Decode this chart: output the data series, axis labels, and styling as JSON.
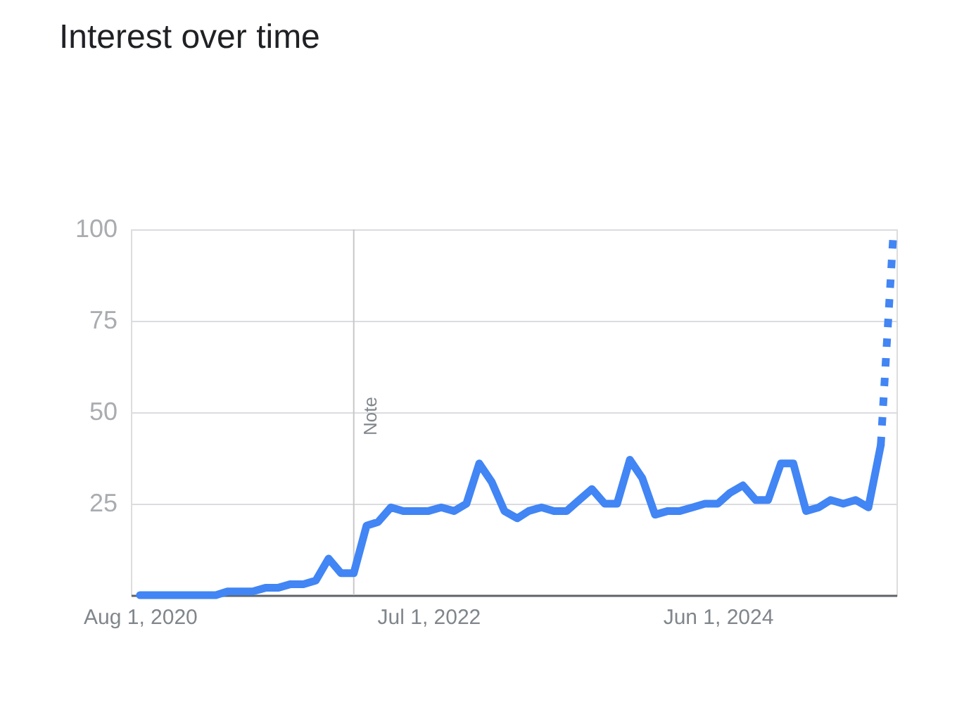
{
  "chart_data": {
    "type": "line",
    "title": "Interest over time",
    "x": [
      "2020-08",
      "2020-09",
      "2020-10",
      "2020-11",
      "2020-12",
      "2021-01",
      "2021-02",
      "2021-03",
      "2021-04",
      "2021-05",
      "2021-06",
      "2021-07",
      "2021-08",
      "2021-09",
      "2021-10",
      "2021-11",
      "2021-12",
      "2022-01",
      "2022-02",
      "2022-03",
      "2022-04",
      "2022-05",
      "2022-06",
      "2022-07",
      "2022-08",
      "2022-09",
      "2022-10",
      "2022-11",
      "2022-12",
      "2023-01",
      "2023-02",
      "2023-03",
      "2023-04",
      "2023-05",
      "2023-06",
      "2023-07",
      "2023-08",
      "2023-09",
      "2023-10",
      "2023-11",
      "2023-12",
      "2024-01",
      "2024-02",
      "2024-03",
      "2024-04",
      "2024-05",
      "2024-06",
      "2024-07",
      "2024-08",
      "2024-09",
      "2024-10",
      "2024-11",
      "2024-12",
      "2025-01",
      "2025-02",
      "2025-03",
      "2025-04",
      "2025-05",
      "2025-06",
      "2025-07",
      "2025-08"
    ],
    "series": [
      {
        "color": "#4285f4",
        "values": [
          0,
          0,
          0,
          0,
          0,
          0,
          0,
          1,
          1,
          1,
          2,
          2,
          3,
          3,
          4,
          10,
          6,
          6,
          19,
          20,
          24,
          23,
          23,
          23,
          24,
          23,
          25,
          36,
          31,
          23,
          21,
          23,
          24,
          23,
          23,
          26,
          29,
          25,
          25,
          37,
          32,
          22,
          23,
          23,
          24,
          25,
          25,
          28,
          30,
          26,
          26,
          36,
          36,
          23,
          24,
          26,
          25,
          26,
          24,
          41,
          null
        ]
      },
      {
        "color": "#4285f4",
        "line_style": "dotted",
        "values": [
          null,
          null,
          null,
          null,
          null,
          null,
          null,
          null,
          null,
          null,
          null,
          null,
          null,
          null,
          null,
          null,
          null,
          null,
          null,
          null,
          null,
          null,
          null,
          null,
          null,
          null,
          null,
          null,
          null,
          null,
          null,
          null,
          null,
          null,
          null,
          null,
          null,
          null,
          null,
          null,
          null,
          null,
          null,
          null,
          null,
          null,
          null,
          null,
          null,
          null,
          null,
          null,
          null,
          null,
          null,
          null,
          null,
          null,
          null,
          41,
          100
        ]
      }
    ],
    "line_style": "solid",
    "xlim": [
      "2020-07-10",
      "2025-08-08"
    ],
    "xticks": [
      {
        "value": "2020-08-01",
        "label": "Aug 1, 2020"
      },
      {
        "value": "2022-07-01",
        "label": "Jul 1, 2022"
      },
      {
        "value": "2024-06-01",
        "label": "Jun 1, 2024"
      }
    ],
    "ylim": [
      0,
      100
    ],
    "yticks": [
      25,
      50,
      75,
      100
    ],
    "grid": "y",
    "ref_lines": [
      {
        "axis": "x",
        "value": "2022-01-01",
        "label": "Note",
        "color": "#c8c8c8"
      }
    ]
  }
}
